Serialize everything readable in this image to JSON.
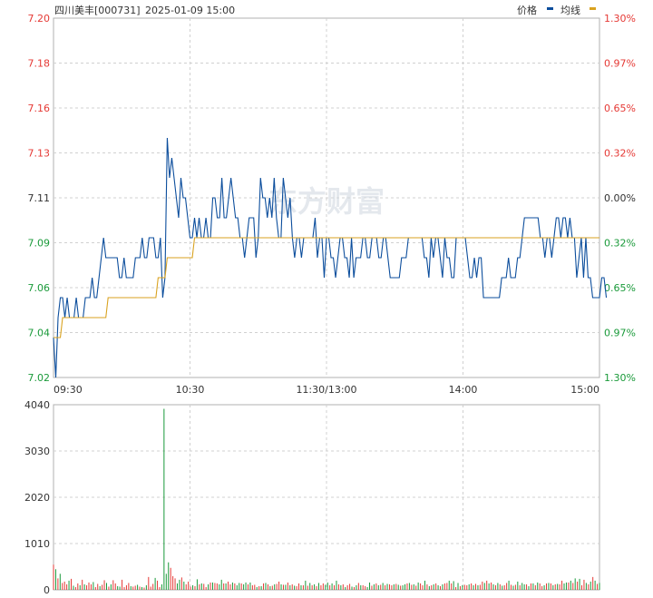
{
  "header": {
    "stock_label": "四川美丰[000731]",
    "datetime": "2025-01-09 15:00",
    "legend_price": "价格",
    "legend_avg": "均线",
    "watermark": "东方财富"
  },
  "colors": {
    "price_line": "#0b4d9c",
    "avg_line": "#d9a21f",
    "up": "#e53935",
    "down": "#1a9a3a",
    "grid": "#d0d0d0",
    "axis_text_up": "#e53935",
    "axis_text_down": "#e53935",
    "flat": "#333333"
  },
  "chart_data": [
    {
      "type": "line",
      "name": "price-chart",
      "x_ticks": [
        "09:30",
        "10:30",
        "11:30/13:00",
        "14:00",
        "15:00"
      ],
      "y_ticks_left": [
        "7.20",
        "7.18",
        "7.16",
        "7.13",
        "7.11",
        "7.09",
        "7.06",
        "7.04",
        "7.02"
      ],
      "y_ticks_right": [
        "1.30%",
        "0.97%",
        "0.65%",
        "0.32%",
        "0.00%",
        "0.32%",
        "0.65%",
        "0.97%",
        "1.30%"
      ],
      "ylim": [
        7.02,
        7.2
      ],
      "prev_close": 7.11,
      "minutes": 241,
      "series": [
        {
          "values": [
            7.04,
            7.02,
            7.05,
            7.06,
            7.06,
            7.05,
            7.06,
            7.05,
            7.05,
            7.05,
            7.06,
            7.05,
            7.05,
            7.05,
            7.06,
            7.06,
            7.06,
            7.07,
            7.06,
            7.06,
            7.07,
            7.08,
            7.09,
            7.08,
            7.08,
            7.08,
            7.08,
            7.08,
            7.08,
            7.07,
            7.07,
            7.08,
            7.07,
            7.07,
            7.07,
            7.07,
            7.08,
            7.08,
            7.08,
            7.09,
            7.08,
            7.08,
            7.09,
            7.09,
            7.09,
            7.08,
            7.08,
            7.09,
            7.06,
            7.07,
            7.14,
            7.12,
            7.13,
            7.12,
            7.11,
            7.1,
            7.12,
            7.11,
            7.11,
            7.1,
            7.09,
            7.09,
            7.1,
            7.09,
            7.1,
            7.09,
            7.09,
            7.1,
            7.09,
            7.09,
            7.11,
            7.11,
            7.1,
            7.1,
            7.12,
            7.1,
            7.1,
            7.11,
            7.12,
            7.11,
            7.1,
            7.1,
            7.09,
            7.09,
            7.08,
            7.09,
            7.1,
            7.1,
            7.1,
            7.08,
            7.09,
            7.12,
            7.11,
            7.11,
            7.1,
            7.11,
            7.1,
            7.12,
            7.1,
            7.09,
            7.09,
            7.12,
            7.11,
            7.1,
            7.11,
            7.09,
            7.08,
            7.09,
            7.09,
            7.08,
            7.09,
            7.09,
            7.09,
            7.09,
            7.09,
            7.1,
            7.08,
            7.09,
            7.09,
            7.07,
            7.09,
            7.09,
            7.08,
            7.08,
            7.07,
            7.08,
            7.09,
            7.09,
            7.08,
            7.08,
            7.07,
            7.09,
            7.07,
            7.08,
            7.08,
            7.08,
            7.09,
            7.09,
            7.08,
            7.08,
            7.09,
            7.09,
            7.09,
            7.08,
            7.08,
            7.09,
            7.09,
            7.08,
            7.07,
            7.07,
            7.07,
            7.07,
            7.07,
            7.08,
            7.08,
            7.08,
            7.09,
            7.09,
            7.09,
            7.09,
            7.09,
            7.09,
            7.09,
            7.08,
            7.08,
            7.07,
            7.09,
            7.08,
            7.09,
            7.09,
            7.08,
            7.07,
            7.09,
            7.08,
            7.08,
            7.07,
            7.07,
            7.09,
            7.09,
            7.09,
            7.09,
            7.09,
            7.08,
            7.07,
            7.07,
            7.08,
            7.07,
            7.08,
            7.08,
            7.06,
            7.06,
            7.06,
            7.06,
            7.06,
            7.06,
            7.06,
            7.06,
            7.07,
            7.07,
            7.07,
            7.08,
            7.07,
            7.07,
            7.07,
            7.08,
            7.08,
            7.09,
            7.1,
            7.1,
            7.1,
            7.1,
            7.1,
            7.1,
            7.1,
            7.09,
            7.09,
            7.08,
            7.09,
            7.09,
            7.08,
            7.09,
            7.1,
            7.1,
            7.09,
            7.1,
            7.1,
            7.09,
            7.1,
            7.09,
            7.09,
            7.07,
            7.08,
            7.09,
            7.07,
            7.09,
            7.07,
            7.07,
            7.06,
            7.06,
            7.06,
            7.06,
            7.07,
            7.07,
            7.06
          ]
        },
        {
          "values": [
            7.04,
            7.04,
            7.04,
            7.04,
            7.05,
            7.05,
            7.05,
            7.05,
            7.05,
            7.05,
            7.05,
            7.05,
            7.05,
            7.05,
            7.05,
            7.05,
            7.05,
            7.05,
            7.05,
            7.05,
            7.05,
            7.05,
            7.05,
            7.05,
            7.06,
            7.06,
            7.06,
            7.06,
            7.06,
            7.06,
            7.06,
            7.06,
            7.06,
            7.06,
            7.06,
            7.06,
            7.06,
            7.06,
            7.06,
            7.06,
            7.06,
            7.06,
            7.06,
            7.06,
            7.06,
            7.06,
            7.07,
            7.07,
            7.07,
            7.07,
            7.08,
            7.08,
            7.08,
            7.08,
            7.08,
            7.08,
            7.08,
            7.08,
            7.08,
            7.08,
            7.08,
            7.08,
            7.09,
            7.09,
            7.09,
            7.09,
            7.09,
            7.09,
            7.09,
            7.09,
            7.09,
            7.09,
            7.09,
            7.09,
            7.09,
            7.09,
            7.09,
            7.09,
            7.09,
            7.09,
            7.09,
            7.09,
            7.09,
            7.09,
            7.09,
            7.09,
            7.09,
            7.09,
            7.09,
            7.09,
            7.09,
            7.09,
            7.09,
            7.09,
            7.09,
            7.09,
            7.09,
            7.09,
            7.09,
            7.09,
            7.09,
            7.09,
            7.09,
            7.09,
            7.09,
            7.09,
            7.09,
            7.09,
            7.09,
            7.09,
            7.09,
            7.09,
            7.09,
            7.09,
            7.09,
            7.09,
            7.09,
            7.09,
            7.09,
            7.09,
            7.09,
            7.09,
            7.09,
            7.09,
            7.09,
            7.09,
            7.09,
            7.09,
            7.09,
            7.09,
            7.09,
            7.09,
            7.09,
            7.09,
            7.09,
            7.09,
            7.09,
            7.09,
            7.09,
            7.09,
            7.09,
            7.09,
            7.09,
            7.09,
            7.09,
            7.09,
            7.09,
            7.09,
            7.09,
            7.09,
            7.09,
            7.09,
            7.09,
            7.09,
            7.09,
            7.09,
            7.09,
            7.09,
            7.09,
            7.09,
            7.09,
            7.09,
            7.09,
            7.09,
            7.09,
            7.09,
            7.09,
            7.09,
            7.09,
            7.09,
            7.09,
            7.09,
            7.09,
            7.09,
            7.09,
            7.09,
            7.09,
            7.09,
            7.09,
            7.09,
            7.09,
            7.09,
            7.09,
            7.09,
            7.09,
            7.09,
            7.09,
            7.09,
            7.09,
            7.09,
            7.09,
            7.09,
            7.09,
            7.09,
            7.09,
            7.09,
            7.09,
            7.09,
            7.09,
            7.09,
            7.09,
            7.09,
            7.09,
            7.09,
            7.09,
            7.09,
            7.09,
            7.09,
            7.09,
            7.09,
            7.09,
            7.09,
            7.09,
            7.09,
            7.09,
            7.09,
            7.09,
            7.09,
            7.09,
            7.09,
            7.09,
            7.09,
            7.09,
            7.09,
            7.09,
            7.09,
            7.09,
            7.09,
            7.09,
            7.09,
            7.09,
            7.09,
            7.09,
            7.09,
            7.09,
            7.09,
            7.09,
            7.09,
            7.09,
            7.09,
            7.09
          ]
        }
      ]
    },
    {
      "type": "bar",
      "name": "volume-chart",
      "y_ticks": [
        "4040",
        "3030",
        "2020",
        "1010",
        "0"
      ],
      "ylim": [
        0,
        4040
      ],
      "series": [
        {
          "values": [
            550,
            450,
            250,
            350,
            150,
            180,
            120,
            200,
            240,
            90,
            60,
            140,
            100,
            220,
            120,
            100,
            160,
            120,
            170,
            60,
            130,
            80,
            110,
            210,
            150,
            70,
            120,
            210,
            140,
            80,
            70,
            220,
            60,
            100,
            150,
            80,
            70,
            90,
            110,
            70,
            60,
            50,
            100,
            280,
            70,
            130,
            260,
            200,
            60,
            120,
            3950,
            350,
            600,
            480,
            300,
            250,
            140,
            220,
            270,
            180,
            120,
            180,
            70,
            100,
            80,
            230,
            120,
            140,
            130,
            60,
            120,
            160,
            160,
            150,
            140,
            120,
            220,
            140,
            140,
            180,
            120,
            160,
            140,
            100,
            150,
            140,
            120,
            160,
            120,
            160,
            100,
            110,
            60,
            80,
            80,
            140,
            150,
            120,
            80,
            90,
            120,
            130,
            180,
            120,
            110,
            110,
            160,
            100,
            120,
            90,
            80,
            140,
            100,
            100,
            200,
            90,
            150,
            100,
            120,
            80,
            150,
            100,
            140,
            110,
            160,
            100,
            140,
            100,
            200,
            120,
            100,
            120,
            60,
            100,
            130,
            70,
            60,
            100,
            150,
            100,
            100,
            80,
            60,
            160,
            90,
            120,
            140,
            100,
            110,
            150,
            100,
            130,
            120,
            100,
            120,
            130,
            110,
            90,
            100,
            120,
            140,
            150,
            110,
            120,
            90,
            160,
            140,
            100,
            200,
            120,
            80,
            100,
            120,
            140,
            100,
            80,
            120,
            140,
            150,
            200,
            140,
            190,
            60,
            150,
            80,
            100,
            110,
            100,
            120,
            140,
            100,
            130,
            100,
            110,
            180,
            150,
            200,
            140,
            160,
            120,
            100,
            150,
            120,
            90,
            100,
            150,
            200,
            110,
            90,
            110,
            180,
            100,
            150,
            120,
            120,
            80,
            140,
            140,
            100,
            160,
            140,
            80,
            100,
            140,
            150,
            140,
            100,
            120,
            130,
            120,
            200,
            140,
            160,
            160,
            200,
            150,
            250,
            180,
            240,
            100,
            220,
            150,
            120,
            180,
            280,
            200,
            130,
            150
          ],
          "up_down": "UDUDUUUDUDUUDUDUUUDUUDUUDUDUUDDUUUUDUUDUDUDUUUDUUDDDDUUUDDUDUUUDUDUDUUDUDUUDDUDUUDUDDUDDUDUUDUDUDUDUDUUDUDUDUDUUDUDUDUDUDUUDDUDUDUDUDUUDUDUDUUDDUDUDUDUDUUDUDUDDUDUDUDUUDUDUDUDUDUUDUDUDUDUUDUDUDUUDUDUDUDUDUUDUDUDUDDUDUDUDUUDUDUDUDUUDDUDUDUDUUDUDUDUDUU"
        }
      ]
    }
  ]
}
